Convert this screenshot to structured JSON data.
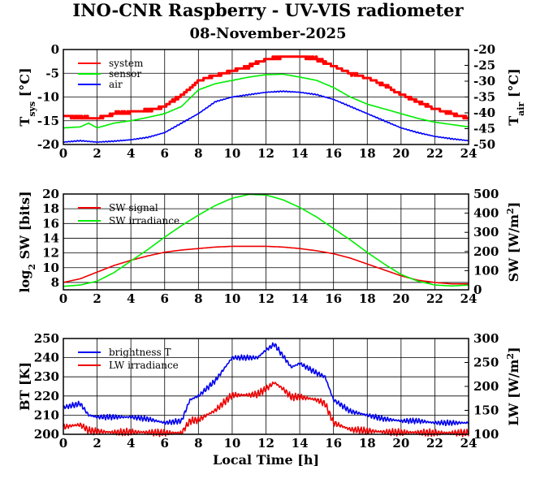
{
  "figure": {
    "title": "INO-CNR Raspberry - UV-VIS radiometer",
    "subtitle": "08-November-2025"
  },
  "chart_data": [
    {
      "type": "line",
      "id": "temp",
      "xlim": [
        0,
        24
      ],
      "x_ticks": [
        0,
        2,
        4,
        6,
        8,
        10,
        12,
        14,
        16,
        18,
        20,
        22,
        24
      ],
      "ylim": [
        -20,
        0
      ],
      "y_ticks": [
        0,
        -5,
        -10,
        -15,
        -20
      ],
      "ylim2": [
        -50,
        -20
      ],
      "y2_ticks": [
        -20,
        -25,
        -30,
        -35,
        -40,
        -45,
        -50
      ],
      "ylabel": "T",
      "ylabel_sub": "sys",
      "ylabel_unit": " [°C]",
      "ylabel2": "T",
      "ylabel2_sub": "air",
      "ylabel2_unit": " [°C]",
      "legend": [
        "system",
        "sensor",
        "air"
      ],
      "series": [
        {
          "name": "system",
          "axis": "left",
          "color": "#ff0000",
          "step": true,
          "noise": 0.25,
          "x": [
            0,
            1,
            2,
            3,
            4,
            5,
            6,
            7,
            8,
            9,
            10,
            11,
            12,
            13,
            14,
            15,
            16,
            17,
            18,
            19,
            20,
            21,
            22,
            23,
            24
          ],
          "y": [
            -14.0,
            -14.3,
            -14.5,
            -13.5,
            -13.2,
            -12.8,
            -12.0,
            -9.5,
            -6.5,
            -5.5,
            -4.5,
            -3.5,
            -2.0,
            -1.5,
            -1.5,
            -2.0,
            -3.5,
            -5.0,
            -6.0,
            -7.5,
            -9.5,
            -11.0,
            -12.5,
            -13.5,
            -14.5
          ]
        },
        {
          "name": "sensor",
          "axis": "left",
          "color": "#00ee00",
          "step": false,
          "noise": 0.05,
          "x": [
            0,
            1,
            1.5,
            2,
            3,
            4,
            5,
            6,
            7,
            8,
            9,
            10,
            11,
            12,
            13,
            14,
            15,
            16,
            17,
            18,
            19,
            20,
            21,
            22,
            23,
            24
          ],
          "y": [
            -16.5,
            -16.3,
            -15.5,
            -16.5,
            -15.5,
            -15.0,
            -14.3,
            -13.5,
            -12.0,
            -8.5,
            -7.2,
            -6.5,
            -5.8,
            -5.3,
            -5.2,
            -5.8,
            -6.5,
            -8.0,
            -10.0,
            -11.5,
            -12.5,
            -13.5,
            -14.5,
            -15.3,
            -15.8,
            -16.3
          ]
        },
        {
          "name": "air",
          "axis": "left",
          "color": "#0000ff",
          "step": false,
          "noise": 0.12,
          "x": [
            0,
            1,
            2,
            3,
            4,
            5,
            6,
            7,
            8,
            9,
            10,
            11,
            12,
            13,
            14,
            15,
            16,
            17,
            18,
            19,
            20,
            21,
            22,
            23,
            24
          ],
          "y": [
            -19.5,
            -19.2,
            -19.5,
            -19.3,
            -19.0,
            -18.5,
            -17.5,
            -15.5,
            -13.5,
            -11.0,
            -10.0,
            -9.5,
            -9.0,
            -8.8,
            -9.0,
            -9.5,
            -10.5,
            -12.0,
            -13.5,
            -15.0,
            -16.5,
            -17.5,
            -18.3,
            -18.8,
            -19.2
          ]
        }
      ]
    },
    {
      "type": "line",
      "id": "sw",
      "xlim": [
        0,
        24
      ],
      "x_ticks": [
        0,
        2,
        4,
        6,
        8,
        10,
        12,
        14,
        16,
        18,
        20,
        22,
        24
      ],
      "ylim": [
        7,
        20
      ],
      "y_ticks": [
        8,
        10,
        12,
        14,
        16,
        18,
        20
      ],
      "ylim2": [
        0,
        500
      ],
      "y2_ticks": [
        0,
        100,
        200,
        300,
        400,
        500
      ],
      "ylabel": "log",
      "ylabel_sub": "2",
      "ylabel_unit": " SW [bits]",
      "ylabel2": "SW [W/m",
      "ylabel2_sup": "2",
      "ylabel2_unit": "]",
      "legend": [
        "SW signal",
        "SW irradiance"
      ],
      "series": [
        {
          "name": "SW signal",
          "axis": "left",
          "color": "#ee0000",
          "step": false,
          "noise": 0,
          "x": [
            0,
            1,
            2,
            3,
            4,
            5,
            6,
            7,
            8,
            9,
            10,
            11,
            12,
            13,
            14,
            15,
            16,
            17,
            18,
            19,
            20,
            21,
            22,
            23,
            24
          ],
          "y": [
            8.0,
            8.5,
            9.4,
            10.3,
            11.0,
            11.6,
            12.1,
            12.4,
            12.6,
            12.8,
            12.9,
            12.9,
            12.9,
            12.8,
            12.6,
            12.3,
            11.9,
            11.3,
            10.5,
            9.7,
            8.9,
            8.3,
            8.0,
            7.8,
            7.8
          ]
        },
        {
          "name": "SW irradiance",
          "axis": "right",
          "color": "#00ee00",
          "step": false,
          "noise": 0,
          "x": [
            0,
            1,
            2,
            3,
            4,
            5,
            6,
            7,
            8,
            9,
            10,
            11,
            12,
            13,
            14,
            15,
            16,
            17,
            18,
            19,
            20,
            21,
            22,
            23,
            24
          ],
          "y": [
            18,
            25,
            45,
            90,
            150,
            210,
            275,
            335,
            390,
            440,
            478,
            498,
            495,
            470,
            430,
            380,
            320,
            260,
            195,
            135,
            80,
            45,
            25,
            20,
            25
          ]
        }
      ]
    },
    {
      "type": "line",
      "id": "lw",
      "xlim": [
        0,
        24
      ],
      "x_ticks": [
        0,
        2,
        4,
        6,
        8,
        10,
        12,
        14,
        16,
        18,
        20,
        22,
        24
      ],
      "ylim": [
        200,
        250
      ],
      "y_ticks": [
        200,
        210,
        220,
        230,
        240,
        250
      ],
      "ylim2": [
        100,
        300
      ],
      "y2_ticks": [
        100,
        150,
        200,
        250,
        300
      ],
      "ylabel": "BT [K]",
      "ylabel2": "LW [W/m",
      "ylabel2_sup": "2",
      "ylabel2_unit": "]",
      "xlabel": "Local Time [h]",
      "legend": [
        "brightness T",
        "LW irradiance"
      ],
      "series": [
        {
          "name": "brightness T",
          "axis": "left",
          "color": "#0000ee",
          "step": false,
          "noise": 0.6,
          "x": [
            0,
            0.5,
            1.0,
            1.5,
            2,
            3,
            4,
            5,
            6,
            7,
            7.5,
            8,
            9,
            10,
            11,
            11.5,
            12,
            12.5,
            13,
            13.5,
            14,
            15,
            15.5,
            16,
            17,
            18,
            19,
            20,
            21,
            22,
            23,
            24
          ],
          "y": [
            214,
            215,
            216,
            210,
            209,
            209,
            209,
            208,
            206,
            207,
            218,
            220,
            228,
            240,
            240,
            240,
            244,
            247,
            241,
            235,
            237,
            232,
            230,
            218,
            212,
            210,
            208,
            207,
            207,
            206,
            206,
            206
          ]
        },
        {
          "name": "LW irradiance",
          "axis": "right",
          "color": "#ee0000",
          "step": false,
          "noise": 0.8,
          "x": [
            0,
            0.5,
            1,
            1.5,
            2,
            3,
            4,
            5,
            6,
            7,
            7.5,
            8,
            9,
            10,
            11,
            11.5,
            12,
            12.5,
            13,
            13.5,
            14,
            15,
            15.5,
            16,
            17,
            18,
            19,
            20,
            21,
            22,
            23,
            24
          ],
          "y": [
            115,
            118,
            120,
            108,
            106,
            104,
            105,
            104,
            103,
            103,
            128,
            130,
            150,
            182,
            182,
            184,
            195,
            208,
            195,
            178,
            178,
            172,
            164,
            124,
            110,
            107,
            105,
            104,
            104,
            103,
            103,
            103
          ]
        }
      ]
    }
  ]
}
